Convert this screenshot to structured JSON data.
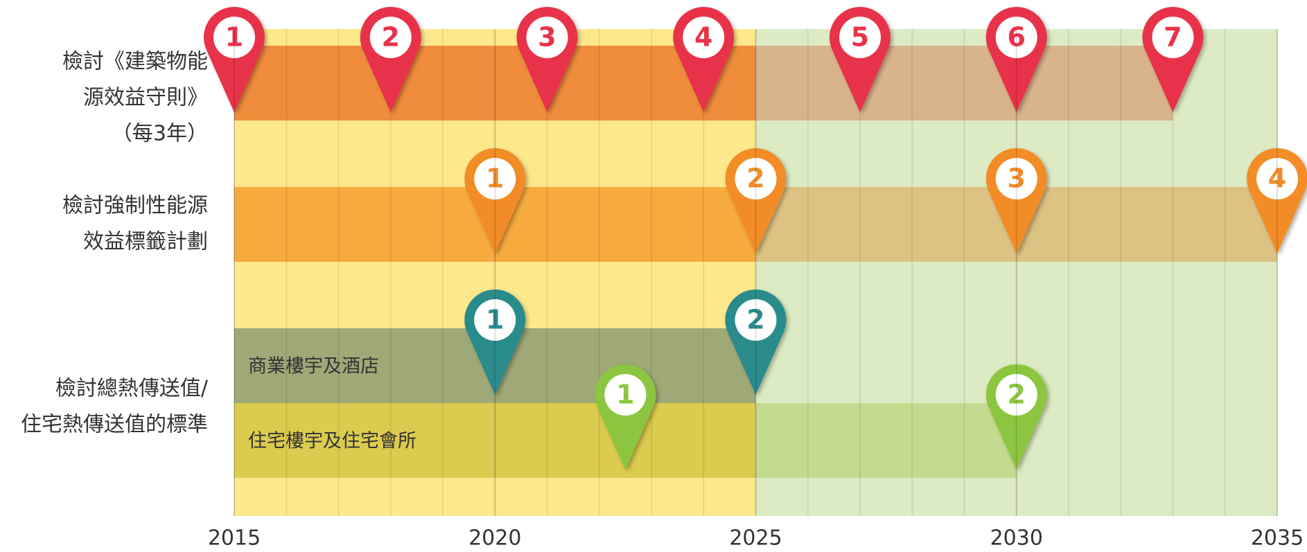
{
  "chart_data": {
    "type": "timeline",
    "xlim": [
      2015,
      2035
    ],
    "xticks": [
      2015,
      2020,
      2025,
      2030,
      2035
    ],
    "background": [
      {
        "range": [
          2015,
          2025
        ],
        "color": "#fde98c"
      },
      {
        "range": [
          2025,
          2035
        ],
        "color": "#dcebc3"
      }
    ],
    "rows": [
      {
        "label": [
          "檢討《建築物能",
          "源效益守則》",
          "（每3年）"
        ],
        "lanes": [
          {
            "pin_color": "#e8334a",
            "segments": [
              {
                "range": [
                  2015,
                  2025
                ],
                "color": "#ef8d3c"
              },
              {
                "range": [
                  2025,
                  2033
                ],
                "color": "#d8b48c"
              }
            ],
            "pins": [
              {
                "x": 2015,
                "label": "1"
              },
              {
                "x": 2018,
                "label": "2"
              },
              {
                "x": 2021,
                "label": "3"
              },
              {
                "x": 2024,
                "label": "4"
              },
              {
                "x": 2027,
                "label": "5"
              },
              {
                "x": 2030,
                "label": "6"
              },
              {
                "x": 2033,
                "label": "7"
              }
            ]
          }
        ]
      },
      {
        "label": [
          "檢討強制性能源",
          "效益標籤計劃"
        ],
        "lanes": [
          {
            "pin_color": "#f28c28",
            "segments": [
              {
                "range": [
                  2015,
                  2025
                ],
                "color": "#f7ab3e"
              },
              {
                "range": [
                  2025,
                  2035
                ],
                "color": "#dcc383"
              }
            ],
            "pins": [
              {
                "x": 2020,
                "label": "1"
              },
              {
                "x": 2025,
                "label": "2"
              },
              {
                "x": 2030,
                "label": "3"
              },
              {
                "x": 2035,
                "label": "4"
              }
            ]
          }
        ]
      },
      {
        "label": [
          "檢討總熱傳送值/",
          "住宅熱傳送值的標準"
        ],
        "lanes": [
          {
            "name": "商業樓宇及酒店",
            "pin_color": "#2a8b8c",
            "segments": [
              {
                "range": [
                  2015,
                  2025
                ],
                "color": "#9ea977"
              }
            ],
            "pins": [
              {
                "x": 2020,
                "label": "1"
              },
              {
                "x": 2025,
                "label": "2"
              }
            ]
          },
          {
            "name": "住宅樓宇及住宅會所",
            "pin_color": "#8cc63f",
            "segments": [
              {
                "range": [
                  2015,
                  2025
                ],
                "color": "#dccb4e"
              },
              {
                "range": [
                  2025,
                  2030
                ],
                "color": "#c4da8e"
              }
            ],
            "pins": [
              {
                "x": 2022.5,
                "label": "1"
              },
              {
                "x": 2030,
                "label": "2"
              }
            ]
          }
        ]
      }
    ]
  }
}
